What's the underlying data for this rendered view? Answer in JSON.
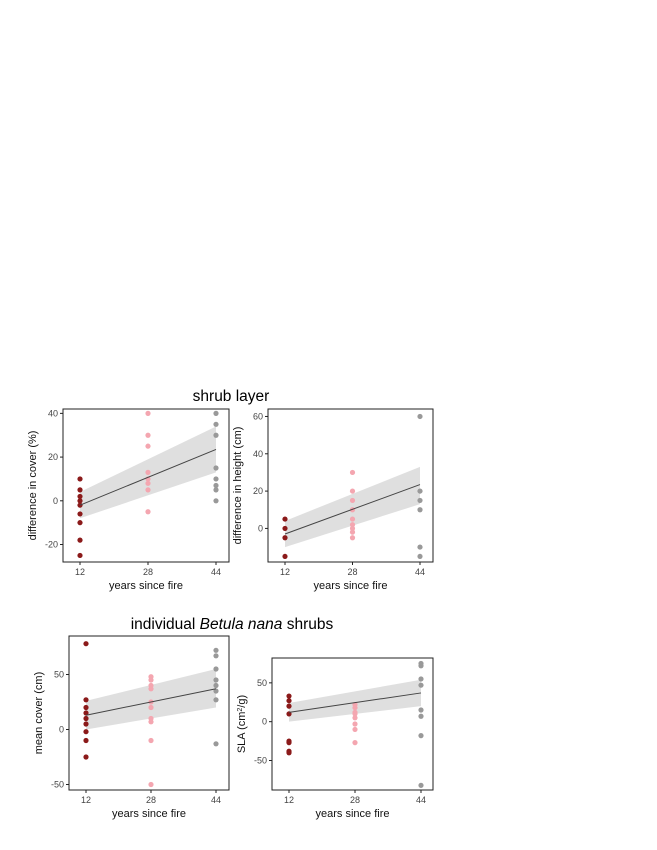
{
  "figure": {
    "titles": {
      "top": "shrub layer",
      "bottom_pre": "individual ",
      "bottom_italic": "Betula nana",
      "bottom_post": " shrubs"
    },
    "group_colors": {
      "12": "#8b1a1a",
      "28": "#f4a6b0",
      "44": "#999999"
    },
    "ribbon_color": "#d9d9d9",
    "line_color": "#444444"
  },
  "chart_data": [
    {
      "id": "cover",
      "type": "scatter",
      "ylabel": "difference in cover (%)",
      "xlabel": "years since fire",
      "xticks": [
        12,
        28,
        44
      ],
      "ylim": [
        -28,
        42
      ],
      "yticks": [
        -20,
        0,
        20,
        40
      ],
      "grid": false,
      "fit": {
        "x": [
          12,
          44
        ],
        "y": [
          -2,
          23.5
        ],
        "ci_lo": [
          -8,
          13
        ],
        "ci_hi": [
          4,
          34
        ]
      },
      "points": [
        {
          "x": 12,
          "ys": [
            10,
            5,
            2,
            0,
            -2,
            -6,
            -10,
            -18,
            -25
          ]
        },
        {
          "x": 28,
          "ys": [
            40,
            30,
            25,
            13,
            10,
            8,
            5,
            -5
          ]
        },
        {
          "x": 44,
          "ys": [
            40,
            35,
            30,
            15,
            10,
            7,
            5,
            0
          ]
        }
      ]
    },
    {
      "id": "height",
      "type": "scatter",
      "ylabel": "difference in height (cm)",
      "xlabel": "years since fire",
      "xticks": [
        12,
        28,
        44
      ],
      "ylim": [
        -18,
        64
      ],
      "yticks": [
        0,
        20,
        40,
        60
      ],
      "grid": false,
      "fit": {
        "x": [
          12,
          44
        ],
        "y": [
          -3,
          23.5
        ],
        "ci_lo": [
          -10,
          13
        ],
        "ci_hi": [
          4,
          33
        ]
      },
      "points": [
        {
          "x": 12,
          "ys": [
            5,
            0,
            -5,
            -15
          ]
        },
        {
          "x": 28,
          "ys": [
            30,
            20,
            15,
            10,
            5,
            2,
            0,
            -2,
            -5
          ]
        },
        {
          "x": 44,
          "ys": [
            60,
            20,
            15,
            10,
            -10,
            -15
          ]
        }
      ]
    },
    {
      "id": "mean-cover",
      "type": "scatter",
      "ylabel": "mean cover (cm)",
      "xlabel": "years since fire",
      "xticks": [
        12,
        28,
        44
      ],
      "ylim": [
        -55,
        85
      ],
      "yticks": [
        -50,
        0,
        50
      ],
      "grid": false,
      "fit": {
        "x": [
          12,
          44
        ],
        "y": [
          13,
          37
        ],
        "ci_lo": [
          0,
          20
        ],
        "ci_hi": [
          26,
          55
        ]
      },
      "points": [
        {
          "x": 12,
          "ys": [
            78,
            27,
            20,
            15,
            10,
            5,
            -2,
            -10,
            -25
          ]
        },
        {
          "x": 28,
          "ys": [
            48,
            45,
            40,
            37,
            25,
            20,
            10,
            7,
            -10,
            -50
          ]
        },
        {
          "x": 44,
          "ys": [
            72,
            67,
            55,
            45,
            40,
            35,
            27,
            -13
          ]
        }
      ]
    },
    {
      "id": "sla",
      "type": "scatter",
      "ylabel_pre": "SLA (cm",
      "ylabel_sup": "2",
      "ylabel_post": "/g)",
      "xlabel": "years since fire",
      "xticks": [
        12,
        28,
        44
      ],
      "ylim": [
        -88,
        82
      ],
      "yticks": [
        -50,
        0,
        50
      ],
      "grid": false,
      "fit": {
        "x": [
          12,
          44
        ],
        "y": [
          12,
          37
        ],
        "ci_lo": [
          0,
          20
        ],
        "ci_hi": [
          24,
          54
        ]
      },
      "points": [
        {
          "x": 12,
          "ys": [
            33,
            27,
            20,
            10,
            -25,
            -27,
            -38,
            -40
          ]
        },
        {
          "x": 28,
          "ys": [
            22,
            18,
            12,
            10,
            5,
            -3,
            -10,
            -27
          ]
        },
        {
          "x": 44,
          "ys": [
            75,
            72,
            55,
            47,
            15,
            7,
            -18,
            -82
          ]
        }
      ]
    }
  ]
}
